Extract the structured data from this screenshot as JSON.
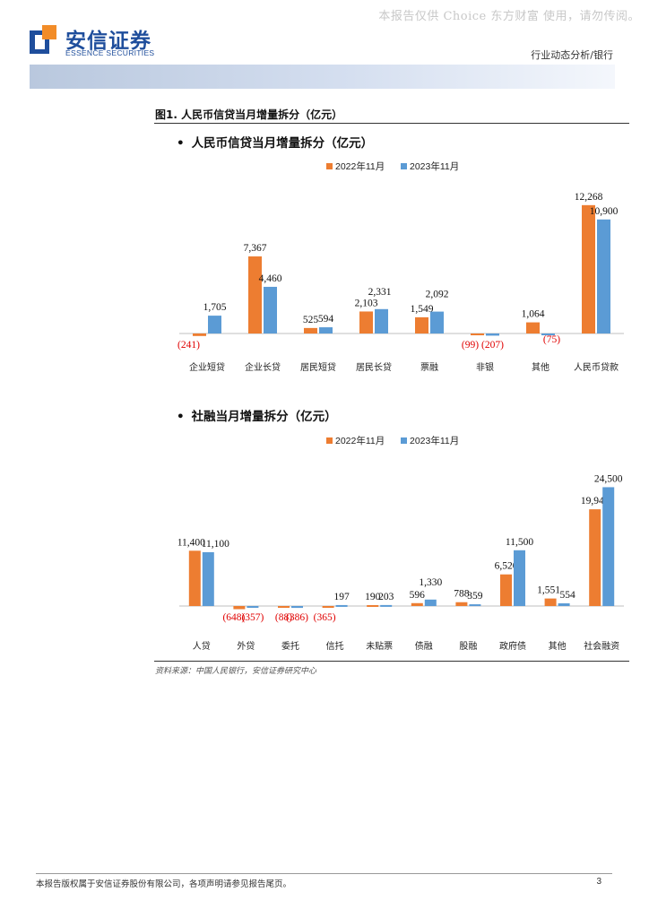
{
  "watermark": "本报告仅供 Choice 东方财富 使用，请勿传阅。",
  "logo": {
    "name_cn": "安信证券",
    "name_en": "ESSENCE SECURITIES"
  },
  "report_type": "行业动态分析/银行",
  "figure_title": "图1. 人民币信贷当月增量拆分（亿元）",
  "source": "资料来源：中国人民银行，安信证券研究中心",
  "footer": {
    "disclaimer": "本报告版权属于安信证券股份有限公司，各项声明请参见报告尾页。",
    "page": "3"
  },
  "colors": {
    "series_2022": "#ed7d31",
    "series_2023": "#5b9bd5",
    "negative_label": "#e00000",
    "brand": "#1f4e9c"
  },
  "chart_data": [
    {
      "type": "bar",
      "title": "人民币信贷当月增量拆分（亿元）",
      "categories": [
        "企业短贷",
        "企业长贷",
        "居民短贷",
        "居民长贷",
        "票融",
        "非银",
        "其他",
        "人民币贷款"
      ],
      "series": [
        {
          "name": "2022年11月",
          "values": [
            -241,
            7367,
            525,
            2103,
            1549,
            -99,
            1064,
            12268
          ],
          "labels": [
            "(241)",
            "7,367",
            "525",
            "2,103",
            "1,549",
            "(99)",
            "1,064",
            "12,268"
          ]
        },
        {
          "name": "2023年11月",
          "values": [
            1705,
            4460,
            594,
            2331,
            2092,
            -207,
            -75,
            10900
          ],
          "labels": [
            "1,705",
            "4,460",
            "594",
            "2,331",
            "2,092",
            "(207)",
            "(75)",
            "10,900"
          ]
        }
      ],
      "legend_position": "top",
      "grid": false
    },
    {
      "type": "bar",
      "title": "社融当月增量拆分（亿元）",
      "categories": [
        "人贷",
        "外贷",
        "委托",
        "信托",
        "未贴票",
        "债融",
        "股融",
        "政府债",
        "其他",
        "社会融资"
      ],
      "series": [
        {
          "name": "2022年11月",
          "values": [
            11400,
            -648,
            -88,
            -365,
            190,
            596,
            788,
            6520,
            1551,
            19944
          ],
          "labels": [
            "11,400",
            "(648)",
            "(88)",
            "(365)",
            "190",
            "596",
            "788",
            "6,520",
            "1,551",
            "19,944"
          ]
        },
        {
          "name": "2023年11月",
          "values": [
            11100,
            -357,
            -386,
            197,
            203,
            1330,
            359,
            11500,
            554,
            24500
          ],
          "labels": [
            "11,100",
            "(357)",
            "(386)",
            "197",
            "203",
            "1,330",
            "359",
            "11,500",
            "554",
            "24,500"
          ]
        }
      ],
      "legend_position": "top",
      "grid": false
    }
  ]
}
